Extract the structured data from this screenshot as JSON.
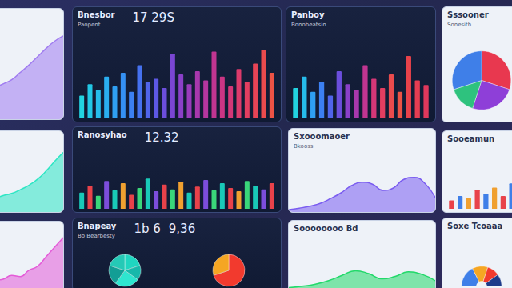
{
  "chart_data": [
    {
      "type": "area",
      "color": "#a07cf0",
      "values": [
        20,
        24,
        26,
        30,
        34,
        38,
        45,
        52,
        60,
        68,
        75,
        80
      ],
      "ylim": [
        0,
        100
      ],
      "tick_labels": false
    },
    {
      "type": "area",
      "color": "#2ee6c4",
      "values": [
        10,
        12,
        14,
        18,
        22,
        25,
        30,
        36,
        44,
        55,
        68,
        80
      ],
      "ylim": [
        0,
        100
      ],
      "tick_labels": false
    },
    {
      "type": "area",
      "color": "#e45bd8",
      "values": [
        10,
        14,
        12,
        18,
        20,
        26,
        24,
        34,
        40,
        55,
        70,
        85
      ],
      "ylim": [
        0,
        100
      ],
      "tick_labels": false
    },
    {
      "type": "bar",
      "title": "Bnesbor",
      "subtitle": "Paopent",
      "annotations": [
        "17 29S"
      ],
      "values": [
        30,
        45,
        38,
        55,
        42,
        60,
        35,
        70,
        48,
        52,
        40,
        85,
        58,
        45,
        62,
        50,
        88,
        55,
        42,
        65,
        48,
        72,
        90,
        60
      ],
      "colors": [
        "#22d3e0",
        "#22c8e6",
        "#26bceb",
        "#2aaef0",
        "#2f9ff2",
        "#3590f3",
        "#3c80f2",
        "#4571ef",
        "#5064ea",
        "#5d58e4",
        "#6b4edc",
        "#7a46d3",
        "#8a40c8",
        "#993bbb",
        "#a838ad",
        "#b5369f",
        "#c13591",
        "#cb3584",
        "#d43777",
        "#dc3a6b",
        "#e23e60",
        "#e74456",
        "#ea4b4d",
        "#ec5345"
      ],
      "ylim": [
        0,
        100
      ],
      "tick_labels": false
    },
    {
      "type": "bar",
      "title": "Panboy",
      "subtitle": "Bonobeatsin",
      "values": [
        40,
        55,
        35,
        48,
        30,
        62,
        45,
        38,
        70,
        52,
        40,
        58,
        35,
        82,
        50,
        44
      ],
      "colors": [
        "#22d3e0",
        "#26bceb",
        "#2f9ff2",
        "#3c80f2",
        "#5064ea",
        "#6b4edc",
        "#8a40c8",
        "#a838ad",
        "#c13591",
        "#d43777",
        "#e23e60",
        "#ea4b4d",
        "#ec5345",
        "#e8424a",
        "#e63d52",
        "#e0385c"
      ],
      "ylim": [
        0,
        100
      ],
      "tick_labels": false
    },
    {
      "type": "bar",
      "title": "Ranosyhao",
      "annotations": [
        "12.32"
      ],
      "values": [
        35,
        50,
        28,
        60,
        40,
        55,
        30,
        45,
        65,
        38,
        52,
        42,
        58,
        35,
        48,
        62,
        40,
        55,
        45,
        38,
        60,
        50,
        42,
        55
      ],
      "colors": [
        "#19c9b8",
        "#e8424a",
        "#3ad67a",
        "#7c4ddb",
        "#19c9b8",
        "#f0a030",
        "#e8424a",
        "#3ad67a",
        "#19c9b8",
        "#7c4ddb",
        "#e8424a",
        "#3ad67a",
        "#f0a030",
        "#19c9b8",
        "#e8424a",
        "#7c4ddb",
        "#3ad67a",
        "#19c9b8",
        "#e8424a",
        "#f0a030",
        "#3ad67a",
        "#19c9b8",
        "#7c4ddb",
        "#e8424a"
      ],
      "ylim": [
        0,
        100
      ],
      "tick_labels": false
    },
    {
      "type": "pie",
      "title": "Bnapeay",
      "subtitle": "Bo Bearbesty",
      "annotations": [
        "1b 6",
        "9,36"
      ],
      "series": [
        {
          "values": [
            20,
            15,
            25,
            20,
            20
          ],
          "colors": [
            "#1fd6c0",
            "#17b8aa",
            "#2ee6cf",
            "#129e95",
            "#25c9b6"
          ]
        },
        {
          "values": [
            70,
            30
          ],
          "colors": [
            "#f23a2e",
            "#f5a623"
          ]
        }
      ]
    },
    {
      "type": "area",
      "title": "Sxooomaoer",
      "subtitle": "Bkooss",
      "color": "#7a5cf0",
      "values": [
        5,
        8,
        12,
        18,
        28,
        40,
        55,
        62,
        58,
        45,
        50,
        68,
        72,
        60,
        30
      ],
      "ylim": [
        0,
        100
      ],
      "tick_labels": false
    },
    {
      "type": "area",
      "title": "Soooooooo Bd",
      "color": "#22d96a",
      "values": [
        10,
        14,
        20,
        30,
        45,
        58,
        50,
        35,
        42,
        55,
        48,
        30
      ],
      "ylim": [
        0,
        100
      ],
      "tick_labels": false
    },
    {
      "type": "pie",
      "title": "Sssooner",
      "subtitle": "Sonesith",
      "values": [
        30,
        25,
        15,
        30
      ],
      "colors": [
        "#e8384f",
        "#8e3fd8",
        "#2ec27e",
        "#3f7fe8"
      ]
    },
    {
      "type": "bar",
      "title": "Sooeamun",
      "values": [
        20,
        30,
        25,
        45,
        35,
        50,
        30,
        60
      ],
      "colors": [
        "#e8424a",
        "#3f7fe8",
        "#f0a030",
        "#e8424a",
        "#3f7fe8",
        "#f0a030",
        "#e8424a",
        "#3f7fe8"
      ],
      "ylim": [
        0,
        100
      ],
      "tick_labels": false
    },
    {
      "type": "pie",
      "title": "Soxe Tcoaaa",
      "values": [
        35,
        25,
        20,
        20
      ],
      "colors": [
        "#3f7fe8",
        "#f5a623",
        "#f23a2e",
        "#1c3a8a"
      ]
    }
  ]
}
